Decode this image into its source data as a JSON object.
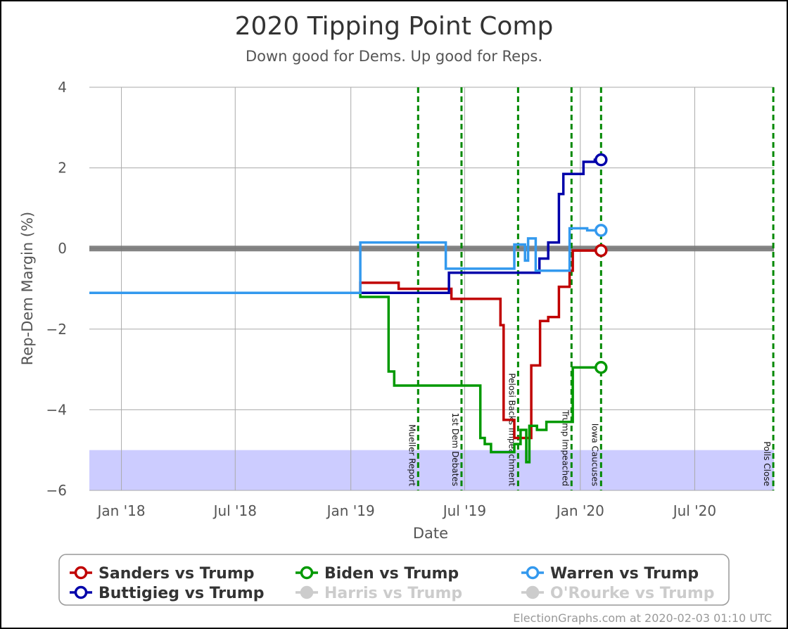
{
  "chart_data": {
    "type": "line",
    "title": "2020 Tipping Point Comp",
    "subtitle": "Down good for Dems. Up good for Reps.",
    "xlabel": "Date",
    "ylabel": "Rep-Dem Margin (%)",
    "xlim": [
      "2017-11-11",
      "2020-11-04"
    ],
    "ylim": [
      -6,
      4
    ],
    "yticks": [
      4,
      2,
      0,
      -2,
      -4,
      -6
    ],
    "yticklabels": [
      "4",
      "2",
      "0",
      "−2",
      "−4",
      "−6"
    ],
    "xticks": [
      {
        "date": "2018-01-01",
        "label": "Jan '18"
      },
      {
        "date": "2018-07-01",
        "label": "Jul '18"
      },
      {
        "date": "2019-01-01",
        "label": "Jan '19"
      },
      {
        "date": "2019-07-01",
        "label": "Jul '19"
      },
      {
        "date": "2020-01-01",
        "label": "Jan '20"
      },
      {
        "date": "2020-07-01",
        "label": "Jul '20"
      }
    ],
    "grid": true,
    "zero_band": 0,
    "shaded_region": {
      "y_from": -6,
      "y_to": -5,
      "color": "#ccccff"
    },
    "events": [
      {
        "date": "2019-04-18",
        "label": "Mueller Report"
      },
      {
        "date": "2019-06-26",
        "label": "1st Dem Debates"
      },
      {
        "date": "2019-09-24",
        "label": "Pelosi Backs Impeachment"
      },
      {
        "date": "2019-12-18",
        "label": "Trump Impeached"
      },
      {
        "date": "2020-02-03",
        "label": "Iowa Caucuses"
      },
      {
        "date": "2020-11-03",
        "label": "Polls Close"
      }
    ],
    "series": [
      {
        "name": "Sanders vs Trump",
        "color": "#c00000",
        "active": true,
        "points": [
          [
            "2017-11-11",
            -1.1
          ],
          [
            "2019-01-16",
            -1.1
          ],
          [
            "2019-01-16",
            -0.85
          ],
          [
            "2019-03-18",
            -0.85
          ],
          [
            "2019-03-18",
            -1.0
          ],
          [
            "2019-06-10",
            -1.0
          ],
          [
            "2019-06-10",
            -1.25
          ],
          [
            "2019-08-27",
            -1.25
          ],
          [
            "2019-08-27",
            -1.9
          ],
          [
            "2019-09-01",
            -1.9
          ],
          [
            "2019-09-01",
            -4.25
          ],
          [
            "2019-09-18",
            -4.25
          ],
          [
            "2019-09-18",
            -4.7
          ],
          [
            "2019-10-15",
            -4.7
          ],
          [
            "2019-10-15",
            -2.9
          ],
          [
            "2019-10-29",
            -2.9
          ],
          [
            "2019-10-29",
            -1.8
          ],
          [
            "2019-11-11",
            -1.8
          ],
          [
            "2019-11-11",
            -1.7
          ],
          [
            "2019-11-28",
            -1.7
          ],
          [
            "2019-11-28",
            -0.95
          ],
          [
            "2019-12-15",
            -0.95
          ],
          [
            "2019-12-15",
            -0.55
          ],
          [
            "2019-12-20",
            -0.55
          ],
          [
            "2019-12-20",
            -0.05
          ],
          [
            "2020-02-03",
            -0.05
          ]
        ]
      },
      {
        "name": "Buttigieg vs Trump",
        "color": "#0000aa",
        "active": true,
        "points": [
          [
            "2017-11-11",
            -1.1
          ],
          [
            "2019-06-06",
            -1.1
          ],
          [
            "2019-06-06",
            -0.6
          ],
          [
            "2019-10-28",
            -0.6
          ],
          [
            "2019-10-28",
            -0.25
          ],
          [
            "2019-11-11",
            -0.25
          ],
          [
            "2019-11-11",
            0.15
          ],
          [
            "2019-11-28",
            0.15
          ],
          [
            "2019-11-28",
            1.35
          ],
          [
            "2019-12-05",
            1.35
          ],
          [
            "2019-12-05",
            1.85
          ],
          [
            "2020-01-06",
            1.85
          ],
          [
            "2020-01-06",
            2.15
          ],
          [
            "2020-01-24",
            2.15
          ],
          [
            "2020-01-24",
            2.2
          ],
          [
            "2020-02-03",
            2.2
          ]
        ]
      },
      {
        "name": "Biden vs Trump",
        "color": "#009900",
        "active": true,
        "points": [
          [
            "2017-11-11",
            -1.1
          ],
          [
            "2019-01-16",
            -1.1
          ],
          [
            "2019-01-16",
            -1.2
          ],
          [
            "2019-03-02",
            -1.2
          ],
          [
            "2019-03-02",
            -3.05
          ],
          [
            "2019-03-11",
            -3.05
          ],
          [
            "2019-03-11",
            -3.4
          ],
          [
            "2019-07-26",
            -3.4
          ],
          [
            "2019-07-26",
            -4.7
          ],
          [
            "2019-08-02",
            -4.7
          ],
          [
            "2019-08-02",
            -4.85
          ],
          [
            "2019-08-12",
            -4.85
          ],
          [
            "2019-08-12",
            -5.05
          ],
          [
            "2019-09-18",
            -5.05
          ],
          [
            "2019-09-18",
            -4.85
          ],
          [
            "2019-09-28",
            -4.85
          ],
          [
            "2019-09-28",
            -4.5
          ],
          [
            "2019-10-07",
            -4.5
          ],
          [
            "2019-10-07",
            -5.3
          ],
          [
            "2019-10-12",
            -5.3
          ],
          [
            "2019-10-12",
            -4.4
          ],
          [
            "2019-10-24",
            -4.4
          ],
          [
            "2019-10-24",
            -4.5
          ],
          [
            "2019-11-08",
            -4.5
          ],
          [
            "2019-11-08",
            -4.3
          ],
          [
            "2019-12-20",
            -4.3
          ],
          [
            "2019-12-20",
            -2.95
          ],
          [
            "2020-02-03",
            -2.95
          ]
        ]
      },
      {
        "name": "Warren vs Trump",
        "color": "#3399ee",
        "active": true,
        "points": [
          [
            "2017-11-11",
            -1.1
          ],
          [
            "2019-01-16",
            -1.1
          ],
          [
            "2019-01-16",
            0.15
          ],
          [
            "2019-06-01",
            0.15
          ],
          [
            "2019-06-01",
            -0.5
          ],
          [
            "2019-09-18",
            -0.5
          ],
          [
            "2019-09-18",
            0.1
          ],
          [
            "2019-10-05",
            0.1
          ],
          [
            "2019-10-05",
            -0.3
          ],
          [
            "2019-10-10",
            -0.3
          ],
          [
            "2019-10-10",
            0.25
          ],
          [
            "2019-10-22",
            0.25
          ],
          [
            "2019-10-22",
            -0.55
          ],
          [
            "2019-12-15",
            -0.55
          ],
          [
            "2019-12-15",
            0.5
          ],
          [
            "2020-01-12",
            0.5
          ],
          [
            "2020-01-12",
            0.45
          ],
          [
            "2020-02-03",
            0.45
          ]
        ]
      },
      {
        "name": "Harris vs Trump",
        "color": "#cccccc",
        "active": false,
        "points": []
      },
      {
        "name": "O'Rourke vs Trump",
        "color": "#cccccc",
        "active": false,
        "points": []
      }
    ]
  },
  "credit": "ElectionGraphs.com at 2020-02-03 01:10 UTC"
}
